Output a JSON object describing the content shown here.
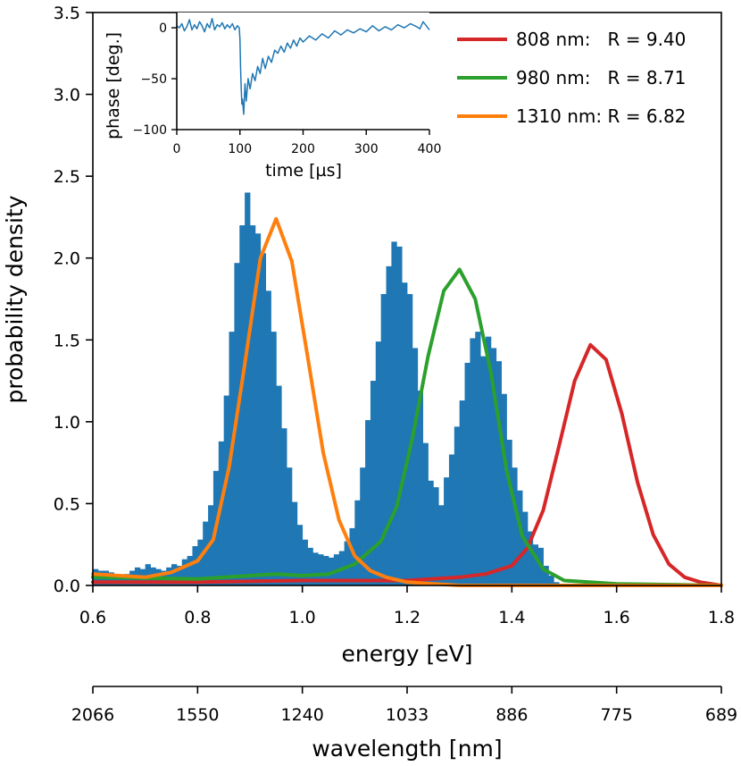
{
  "chart_data": [
    {
      "type": "bar",
      "subtype": "histogram",
      "xlabel": "energy [eV]",
      "ylabel": "probability density",
      "xlim": [
        0.6,
        1.8
      ],
      "ylim": [
        0.0,
        3.5
      ],
      "xticks": [
        "0.6",
        "0.8",
        "1.0",
        "1.2",
        "1.4",
        "1.6",
        "1.8"
      ],
      "yticks": [
        "0.0",
        "0.5",
        "1.0",
        "1.5",
        "2.0",
        "2.5",
        "3.0",
        "3.5"
      ],
      "secondary_xaxis": {
        "label": "wavelength [nm]",
        "ticks": [
          "2066",
          "1550",
          "1240",
          "1033",
          "886",
          "775",
          "689"
        ]
      },
      "histogram": {
        "bin_start": 0.6,
        "bin_width": 0.01,
        "color": "#1f77b4",
        "values": [
          0.1,
          0.09,
          0.09,
          0.08,
          0.07,
          0.06,
          0.07,
          0.09,
          0.11,
          0.1,
          0.13,
          0.11,
          0.1,
          0.09,
          0.11,
          0.13,
          0.12,
          0.16,
          0.18,
          0.24,
          0.28,
          0.39,
          0.49,
          0.7,
          0.88,
          1.16,
          1.55,
          1.97,
          2.2,
          2.4,
          2.2,
          2.15,
          2.03,
          1.8,
          1.55,
          1.22,
          0.96,
          0.72,
          0.51,
          0.37,
          0.28,
          0.23,
          0.2,
          0.19,
          0.18,
          0.17,
          0.19,
          0.21,
          0.27,
          0.35,
          0.52,
          0.72,
          1.01,
          1.25,
          1.49,
          1.78,
          1.95,
          2.1,
          2.07,
          1.85,
          1.78,
          1.45,
          1.19,
          0.87,
          0.64,
          0.6,
          0.49,
          0.66,
          0.8,
          0.97,
          1.13,
          1.36,
          1.51,
          1.55,
          1.4,
          1.52,
          1.45,
          1.37,
          1.17,
          0.89,
          0.72,
          0.58,
          0.45,
          0.33,
          0.25,
          0.23,
          0.12,
          0.06,
          0.02,
          0.01,
          0.01,
          0.0,
          0.0,
          0.0,
          0.0,
          0.0,
          0.0,
          0.0,
          0.0,
          0.0
        ]
      },
      "series": [
        {
          "name": "808 nm:   R = 9.40",
          "color": "#d62728",
          "x": [
            0.6,
            0.8,
            1.0,
            1.1,
            1.2,
            1.3,
            1.35,
            1.4,
            1.43,
            1.46,
            1.49,
            1.52,
            1.55,
            1.58,
            1.61,
            1.64,
            1.67,
            1.7,
            1.73,
            1.76,
            1.8
          ],
          "y": [
            0.02,
            0.02,
            0.03,
            0.03,
            0.03,
            0.05,
            0.07,
            0.12,
            0.23,
            0.46,
            0.85,
            1.25,
            1.47,
            1.38,
            1.05,
            0.63,
            0.31,
            0.13,
            0.05,
            0.02,
            0.0
          ]
        },
        {
          "name": "980 nm:   R = 8.71",
          "color": "#2ca02c",
          "x": [
            0.6,
            0.8,
            0.9,
            0.95,
            1.0,
            1.05,
            1.1,
            1.15,
            1.18,
            1.21,
            1.24,
            1.27,
            1.3,
            1.33,
            1.36,
            1.39,
            1.42,
            1.46,
            1.5,
            1.6,
            1.8
          ],
          "y": [
            0.05,
            0.04,
            0.06,
            0.07,
            0.06,
            0.07,
            0.13,
            0.27,
            0.48,
            0.9,
            1.4,
            1.8,
            1.93,
            1.75,
            1.3,
            0.7,
            0.3,
            0.1,
            0.03,
            0.01,
            0.0
          ]
        },
        {
          "name": "1310 nm: R = 6.82",
          "color": "#ff7f0e",
          "x": [
            0.6,
            0.65,
            0.7,
            0.75,
            0.8,
            0.83,
            0.86,
            0.89,
            0.92,
            0.95,
            0.98,
            1.01,
            1.04,
            1.07,
            1.1,
            1.13,
            1.16,
            1.2,
            1.25,
            1.3,
            1.4,
            1.5,
            1.6,
            1.8
          ],
          "y": [
            0.07,
            0.06,
            0.05,
            0.08,
            0.15,
            0.28,
            0.72,
            1.35,
            2.0,
            2.24,
            1.98,
            1.4,
            0.81,
            0.4,
            0.18,
            0.09,
            0.05,
            0.02,
            0.01,
            0.0,
            0.0,
            0.0,
            0.0,
            0.0
          ]
        }
      ],
      "legend_position": "top-right"
    },
    {
      "type": "line",
      "xlabel": "time [µs]",
      "ylabel": "phase [deg.]",
      "xlim": [
        0,
        400
      ],
      "ylim": [
        -100,
        15
      ],
      "xticks": [
        "0",
        "100",
        "200",
        "300",
        "400"
      ],
      "yticks": [
        "0",
        "−50",
        "−100"
      ],
      "series": [
        {
          "color": "#1f77b4",
          "x": [
            0,
            4,
            8,
            12,
            16,
            20,
            24,
            28,
            32,
            36,
            40,
            44,
            48,
            52,
            56,
            60,
            64,
            68,
            72,
            76,
            80,
            84,
            88,
            92,
            96,
            99,
            100,
            101,
            102,
            103,
            104,
            106,
            108,
            110,
            113,
            116,
            120,
            124,
            128,
            132,
            136,
            140,
            145,
            150,
            155,
            160,
            165,
            170,
            175,
            180,
            185,
            190,
            195,
            200,
            210,
            220,
            230,
            240,
            250,
            260,
            270,
            280,
            290,
            300,
            310,
            320,
            330,
            340,
            350,
            360,
            370,
            380,
            385,
            390,
            395,
            400
          ],
          "y": [
            2,
            0,
            4,
            -3,
            1,
            8,
            -2,
            3,
            -1,
            6,
            2,
            -4,
            4,
            0,
            9,
            -2,
            3,
            1,
            5,
            -1,
            3,
            0,
            4,
            -2,
            2,
            0,
            -12,
            -40,
            -60,
            -75,
            -70,
            -85,
            -55,
            -72,
            -50,
            -60,
            -45,
            -52,
            -38,
            -45,
            -30,
            -40,
            -28,
            -34,
            -22,
            -25,
            -18,
            -24,
            -15,
            -20,
            -12,
            -18,
            -10,
            -14,
            -8,
            -12,
            -6,
            -10,
            -3,
            -7,
            -2,
            -5,
            -1,
            -4,
            2,
            -3,
            1,
            -2,
            3,
            0,
            4,
            1,
            -1,
            6,
            2,
            -2
          ]
        }
      ]
    }
  ]
}
